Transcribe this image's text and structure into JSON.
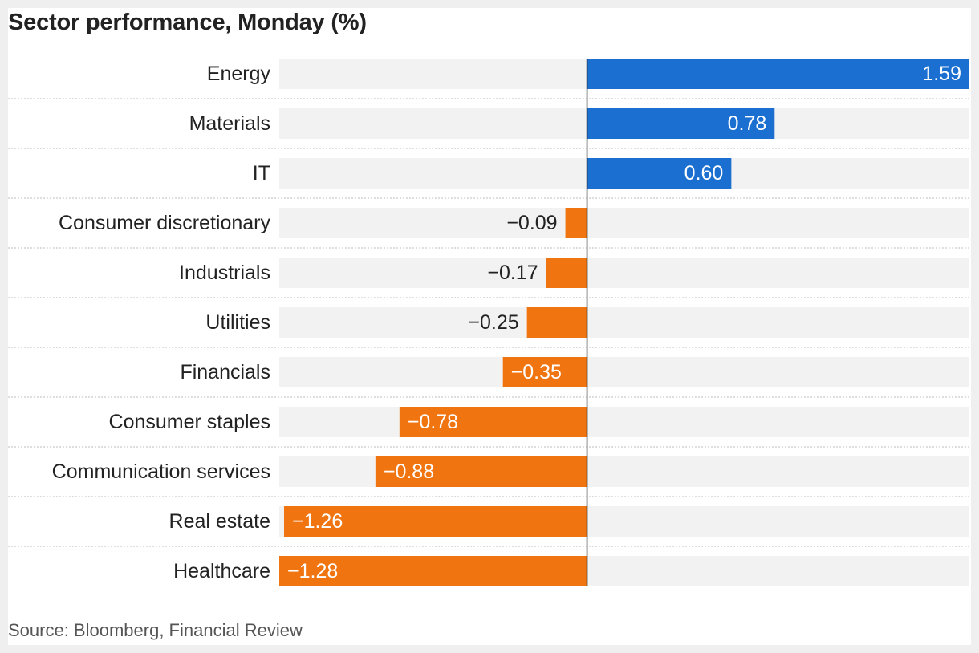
{
  "header": {
    "title": "Sector performance, Monday (%)"
  },
  "footer": {
    "source": "Source: Bloomberg, Financial Review"
  },
  "colors": {
    "positive": "#1a6fd0",
    "negative": "#f07410",
    "track": "#f2f2f2",
    "label": "#222222",
    "axis": "#222222",
    "divider": "#bdbdbd"
  },
  "chart_data": {
    "type": "bar",
    "orientation": "horizontal",
    "title": "Sector performance, Monday (%)",
    "categories": [
      "Energy",
      "Materials",
      "IT",
      "Consumer discretionary",
      "Industrials",
      "Utilities",
      "Financials",
      "Consumer staples",
      "Communication services",
      "Real estate",
      "Healthcare"
    ],
    "values": [
      1.59,
      0.78,
      0.6,
      -0.09,
      -0.17,
      -0.25,
      -0.35,
      -0.78,
      -0.88,
      -1.26,
      -1.28
    ],
    "value_labels": [
      "1.59",
      "0.78",
      "0.60",
      "−0.09",
      "−0.17",
      "−0.25",
      "−0.35",
      "−0.78",
      "−0.88",
      "−1.26",
      "−1.28"
    ],
    "xlim": [
      -1.28,
      1.59
    ],
    "grid": false,
    "legend": "none"
  }
}
